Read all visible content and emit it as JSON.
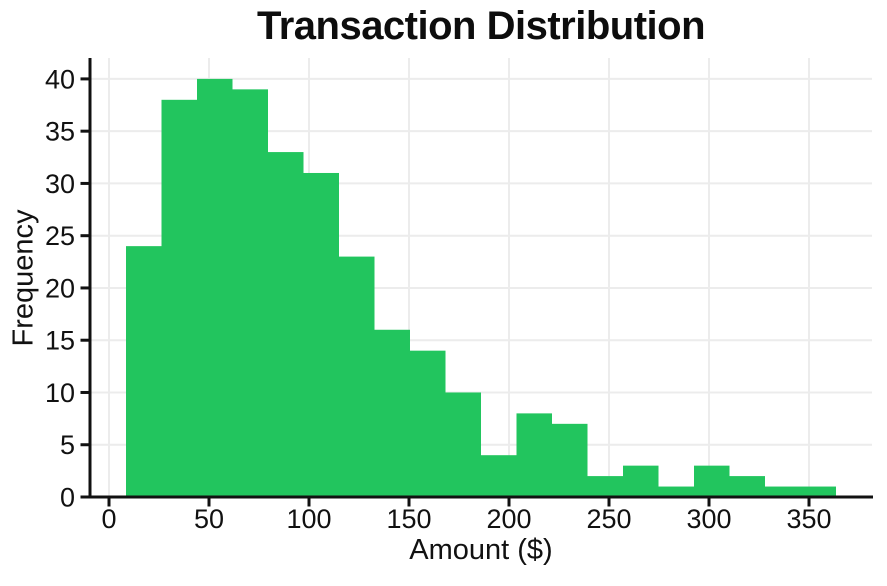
{
  "chart_data": {
    "type": "bar",
    "subtype": "histogram",
    "title": "Transaction Distribution",
    "xlabel": "Amount ($)",
    "ylabel": "Frequency",
    "bin_edges": [
      8.5,
      26.25,
      44.0,
      61.75,
      79.5,
      97.25,
      115.0,
      132.75,
      150.5,
      168.25,
      186.0,
      203.75,
      221.5,
      239.25,
      257.0,
      274.75,
      292.5,
      310.25,
      328.0,
      345.75,
      363.5
    ],
    "counts": [
      24,
      38,
      40,
      39,
      33,
      31,
      23,
      16,
      14,
      10,
      4,
      8,
      7,
      2,
      3,
      1,
      3,
      2,
      1,
      1
    ],
    "total_observations": 300,
    "x_ticks": [
      0,
      50,
      100,
      150,
      200,
      250,
      300,
      350
    ],
    "y_ticks": [
      0,
      5,
      10,
      15,
      20,
      25,
      30,
      35,
      40
    ],
    "xlim": [
      -9.5,
      381.5
    ],
    "ylim": [
      0,
      42
    ],
    "grid": true,
    "legend_position": "none",
    "colors": {
      "bar": "#22c55e",
      "grid": "#ececec",
      "axis": "#111111",
      "text": "#111111",
      "background": "#ffffff"
    }
  }
}
